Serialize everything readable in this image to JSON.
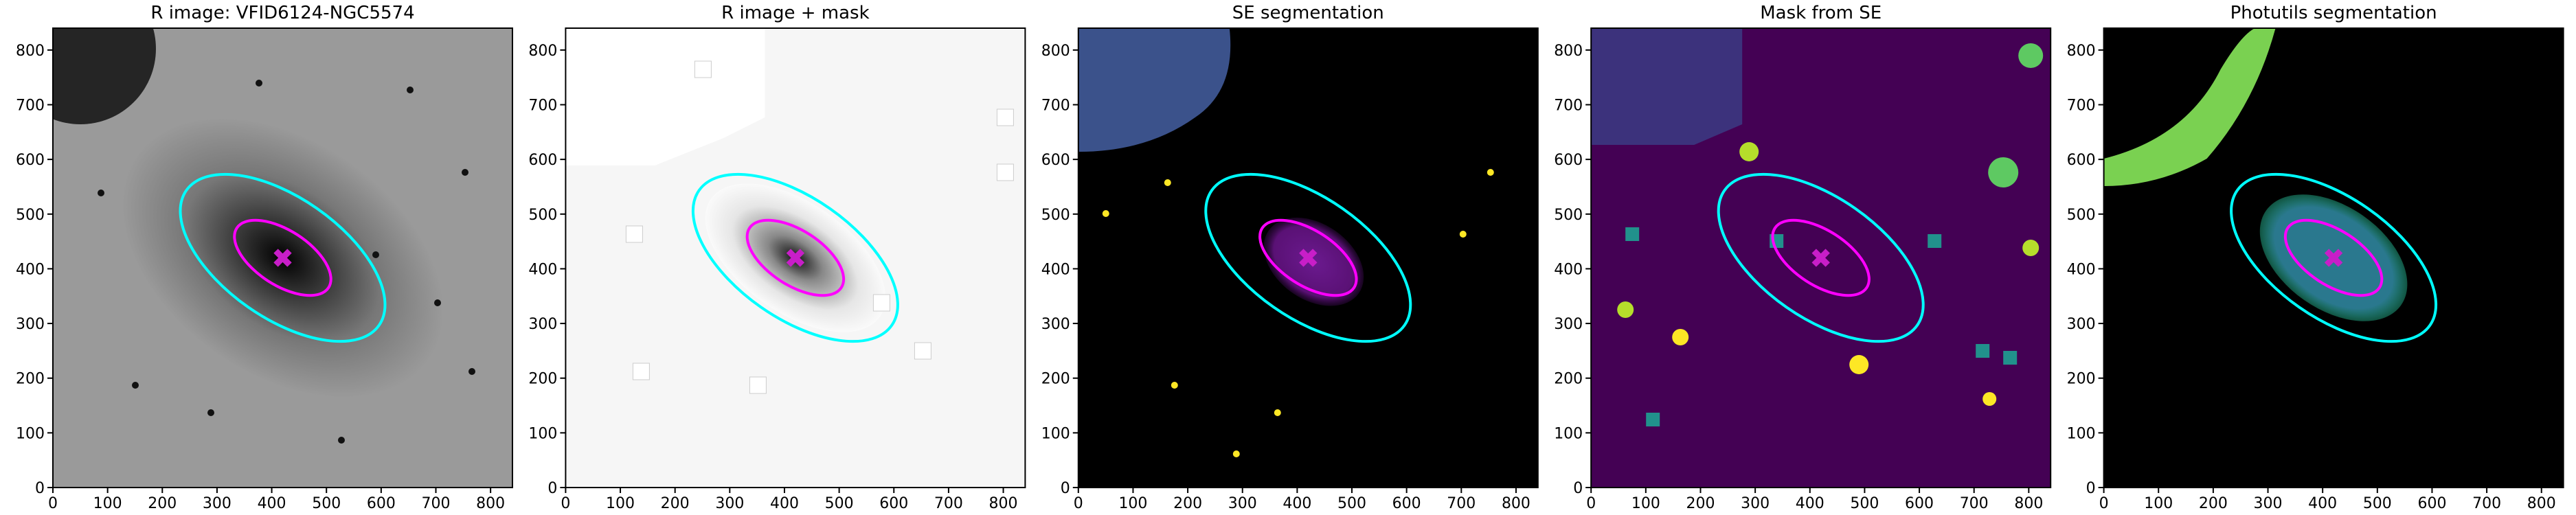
{
  "chart_data": [
    {
      "type": "image",
      "title": "R image: VFID6124-NGC5574",
      "xlim": [
        0,
        840
      ],
      "ylim": [
        0,
        840
      ],
      "xticks": [
        0,
        100,
        200,
        300,
        400,
        500,
        600,
        700,
        800
      ],
      "yticks": [
        0,
        100,
        200,
        300,
        400,
        500,
        600,
        700,
        800
      ],
      "center": {
        "x": 420,
        "y": 420
      },
      "marker_color": "#c81ec8",
      "ellipses": [
        {
          "color": "cyan",
          "a": 215,
          "b": 110,
          "angle": -35
        },
        {
          "color": "magenta",
          "a": 100,
          "b": 50,
          "angle": -33
        }
      ]
    },
    {
      "type": "image",
      "title": "R image + mask",
      "xlim": [
        0,
        840
      ],
      "ylim": [
        0,
        840
      ],
      "xticks": [
        0,
        100,
        200,
        300,
        400,
        500,
        600,
        700,
        800
      ],
      "yticks": [
        0,
        100,
        200,
        300,
        400,
        500,
        600,
        700,
        800
      ],
      "center": {
        "x": 420,
        "y": 420
      },
      "marker_color": "#c81ec8",
      "ellipses": [
        {
          "color": "cyan",
          "a": 215,
          "b": 110,
          "angle": -35
        },
        {
          "color": "magenta",
          "a": 100,
          "b": 50,
          "angle": -33
        }
      ]
    },
    {
      "type": "image",
      "title": "SE segmentation",
      "xlim": [
        0,
        840
      ],
      "ylim": [
        0,
        840
      ],
      "xticks": [
        0,
        100,
        200,
        300,
        400,
        500,
        600,
        700,
        800
      ],
      "yticks": [
        0,
        100,
        200,
        300,
        400,
        500,
        600,
        700,
        800
      ],
      "center": {
        "x": 420,
        "y": 420
      },
      "marker_color": "#c81ec8",
      "ellipses": [
        {
          "color": "cyan",
          "a": 215,
          "b": 110,
          "angle": -35
        },
        {
          "color": "magenta",
          "a": 100,
          "b": 50,
          "angle": -33
        }
      ]
    },
    {
      "type": "image",
      "title": "Mask from SE",
      "xlim": [
        0,
        840
      ],
      "ylim": [
        0,
        840
      ],
      "xticks": [
        0,
        100,
        200,
        300,
        400,
        500,
        600,
        700,
        800
      ],
      "yticks": [
        0,
        100,
        200,
        300,
        400,
        500,
        600,
        700,
        800
      ],
      "center": {
        "x": 420,
        "y": 420
      },
      "marker_color": "#c81ec8",
      "ellipses": [
        {
          "color": "cyan",
          "a": 215,
          "b": 110,
          "angle": -35
        },
        {
          "color": "magenta",
          "a": 100,
          "b": 50,
          "angle": -33
        }
      ]
    },
    {
      "type": "image",
      "title": "Photutils segmentation",
      "xlim": [
        0,
        840
      ],
      "ylim": [
        0,
        840
      ],
      "xticks": [
        0,
        100,
        200,
        300,
        400,
        500,
        600,
        700,
        800
      ],
      "yticks": [
        0,
        100,
        200,
        300,
        400,
        500,
        600,
        700,
        800
      ],
      "center": {
        "x": 420,
        "y": 420
      },
      "marker_color": "#c81ec8",
      "ellipses": [
        {
          "color": "cyan",
          "a": 215,
          "b": 110,
          "angle": -35
        },
        {
          "color": "magenta",
          "a": 100,
          "b": 50,
          "angle": -33
        }
      ]
    }
  ]
}
